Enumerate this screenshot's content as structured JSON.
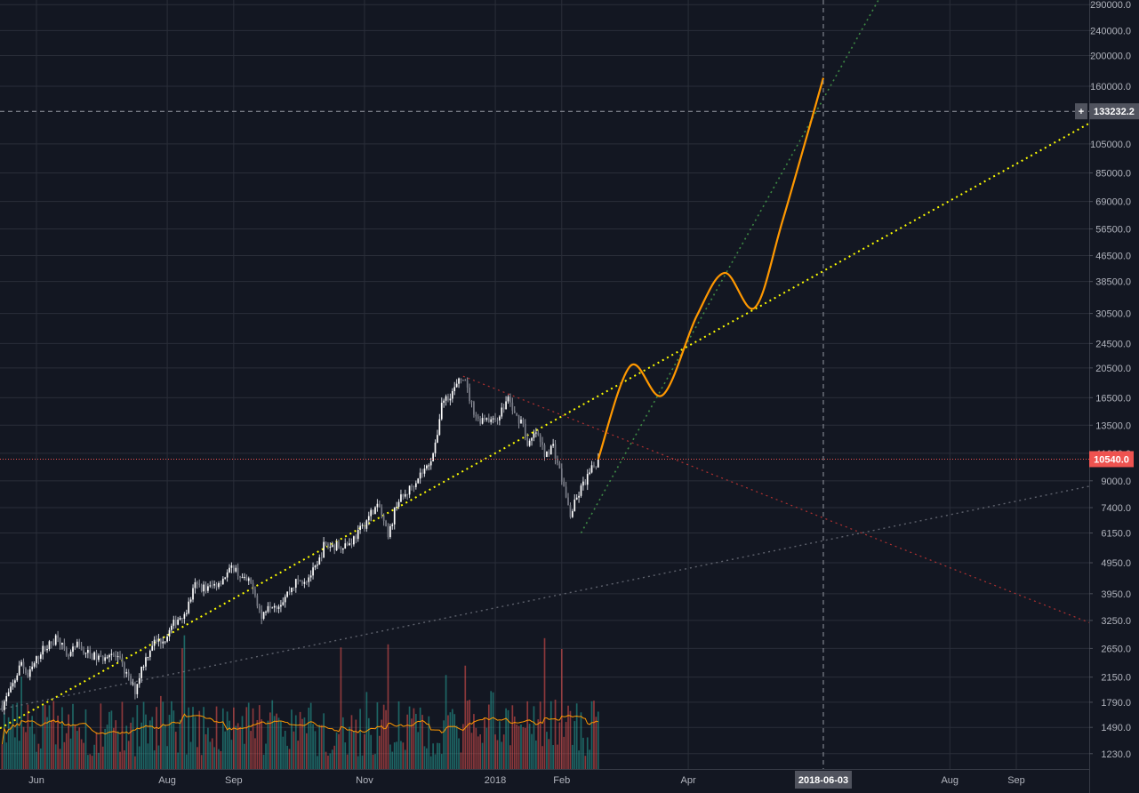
{
  "chart_data": {
    "type": "candlestick",
    "title": "",
    "xlabel": "",
    "ylabel": "",
    "y_scale": "log",
    "ylim": [
      1100,
      300000
    ],
    "grid": true,
    "x_range": [
      "2017-05-15",
      "2018-10-05"
    ],
    "y_ticks": [
      "290000.0",
      "240000.0",
      "200000.0",
      "160000.0",
      "105000.0",
      "85000.0",
      "69000.0",
      "56500.0",
      "46500.0",
      "38500.0",
      "30500.0",
      "24500.0",
      "20500.0",
      "16500.0",
      "13500.0",
      "11000.0",
      "9000.0",
      "7400.0",
      "6150.0",
      "4950.0",
      "3950.0",
      "3250.0",
      "2650.0",
      "2150.0",
      "1790.0",
      "1490.0",
      "1230.0"
    ],
    "x_ticks": [
      {
        "date": "2017-06-01",
        "label": "Jun"
      },
      {
        "date": "2017-08-01",
        "label": "Aug"
      },
      {
        "date": "2017-09-01",
        "label": "Sep"
      },
      {
        "date": "2017-11-01",
        "label": "Nov"
      },
      {
        "date": "2018-01-01",
        "label": "2018"
      },
      {
        "date": "2018-02-01",
        "label": "Feb"
      },
      {
        "date": "2018-04-01",
        "label": "Apr"
      },
      {
        "date": "2018-08-01",
        "label": "Aug"
      },
      {
        "date": "2018-09-01",
        "label": "Sep"
      }
    ],
    "price_path": [
      [
        "2017-05-16",
        1750
      ],
      [
        "2017-05-20",
        1950
      ],
      [
        "2017-05-25",
        2400
      ],
      [
        "2017-05-28",
        2150
      ],
      [
        "2017-06-03",
        2600
      ],
      [
        "2017-06-08",
        2750
      ],
      [
        "2017-06-11",
        2950
      ],
      [
        "2017-06-15",
        2450
      ],
      [
        "2017-06-20",
        2700
      ],
      [
        "2017-06-25",
        2550
      ],
      [
        "2017-07-01",
        2450
      ],
      [
        "2017-07-05",
        2600
      ],
      [
        "2017-07-10",
        2400
      ],
      [
        "2017-07-15",
        2050
      ],
      [
        "2017-07-17",
        1950
      ],
      [
        "2017-07-20",
        2300
      ],
      [
        "2017-07-25",
        2750
      ],
      [
        "2017-07-31",
        2850
      ],
      [
        "2017-08-05",
        3250
      ],
      [
        "2017-08-10",
        3500
      ],
      [
        "2017-08-14",
        4200
      ],
      [
        "2017-08-20",
        4100
      ],
      [
        "2017-08-25",
        4300
      ],
      [
        "2017-09-01",
        4800
      ],
      [
        "2017-09-05",
        4400
      ],
      [
        "2017-09-10",
        4200
      ],
      [
        "2017-09-14",
        3300
      ],
      [
        "2017-09-17",
        3700
      ],
      [
        "2017-09-22",
        3650
      ],
      [
        "2017-09-30",
        4300
      ],
      [
        "2017-10-05",
        4400
      ],
      [
        "2017-10-10",
        4800
      ],
      [
        "2017-10-13",
        5600
      ],
      [
        "2017-10-18",
        5600
      ],
      [
        "2017-10-25",
        5700
      ],
      [
        "2017-10-31",
        6400
      ],
      [
        "2017-11-05",
        7300
      ],
      [
        "2017-11-08",
        7400
      ],
      [
        "2017-11-12",
        5900
      ],
      [
        "2017-11-16",
        7700
      ],
      [
        "2017-11-20",
        8100
      ],
      [
        "2017-11-26",
        9300
      ],
      [
        "2017-11-30",
        9900
      ],
      [
        "2017-12-04",
        11500
      ],
      [
        "2017-12-07",
        16000
      ],
      [
        "2017-12-12",
        17200
      ],
      [
        "2017-12-17",
        19300
      ],
      [
        "2017-12-21",
        15600
      ],
      [
        "2017-12-24",
        14000
      ],
      [
        "2017-12-28",
        14400
      ],
      [
        "2017-12-31",
        13800
      ],
      [
        "2018-01-04",
        15000
      ],
      [
        "2018-01-07",
        16500
      ],
      [
        "2018-01-10",
        14500
      ],
      [
        "2018-01-14",
        13800
      ],
      [
        "2018-01-16",
        11500
      ],
      [
        "2018-01-20",
        12800
      ],
      [
        "2018-01-24",
        11000
      ],
      [
        "2018-01-28",
        11600
      ],
      [
        "2018-02-01",
        9100
      ],
      [
        "2018-02-05",
        7000
      ],
      [
        "2018-02-07",
        7600
      ],
      [
        "2018-02-10",
        8500
      ],
      [
        "2018-02-14",
        9500
      ],
      [
        "2018-02-18",
        10540
      ]
    ],
    "series": [
      {
        "name": "",
        "values": [
          [
            "2018-02-18",
            10540
          ],
          [
            "2018-03-05",
            20800
          ],
          [
            "2018-03-20",
            16800
          ],
          [
            "2018-04-05",
            30000
          ],
          [
            "2018-04-18",
            41000
          ],
          [
            "2018-05-02",
            31800
          ],
          [
            "2018-05-15",
            60000
          ],
          [
            "2018-06-03",
            170000
          ]
        ]
      }
    ],
    "trendlines": [
      {
        "from": [
          "2017-05-15",
          1480
        ],
        "to": [
          "2018-10-05",
          122000
        ]
      },
      {
        "from": [
          "2018-02-10",
          6150
        ],
        "to": [
          "2018-07-01",
          320000
        ]
      },
      {
        "from": [
          "2017-05-15",
          1700
        ],
        "to": [
          "2018-10-05",
          8650
        ]
      },
      {
        "from": [
          "2017-12-17",
          19300
        ],
        "to": [
          "2018-10-05",
          3200
        ]
      }
    ],
    "markers": {
      "last_price": "10540.0",
      "crosshair_price": "133232.2",
      "crosshair_date": "2018-06-03",
      "crosshair_plus": "+"
    },
    "colors": {
      "up": "#26a69a",
      "down": "#ef5350",
      "candle": "#ffffff",
      "projection": "#ff9800",
      "trend_yellow": "#ffff00",
      "trend_green": "#4caf50",
      "trend_red": "#e53935",
      "trend_grey": "#787b86",
      "volume_ma": "#ff9800",
      "price_line": "#ef5350",
      "background": "#131722",
      "grid": "#2a2e39"
    }
  }
}
